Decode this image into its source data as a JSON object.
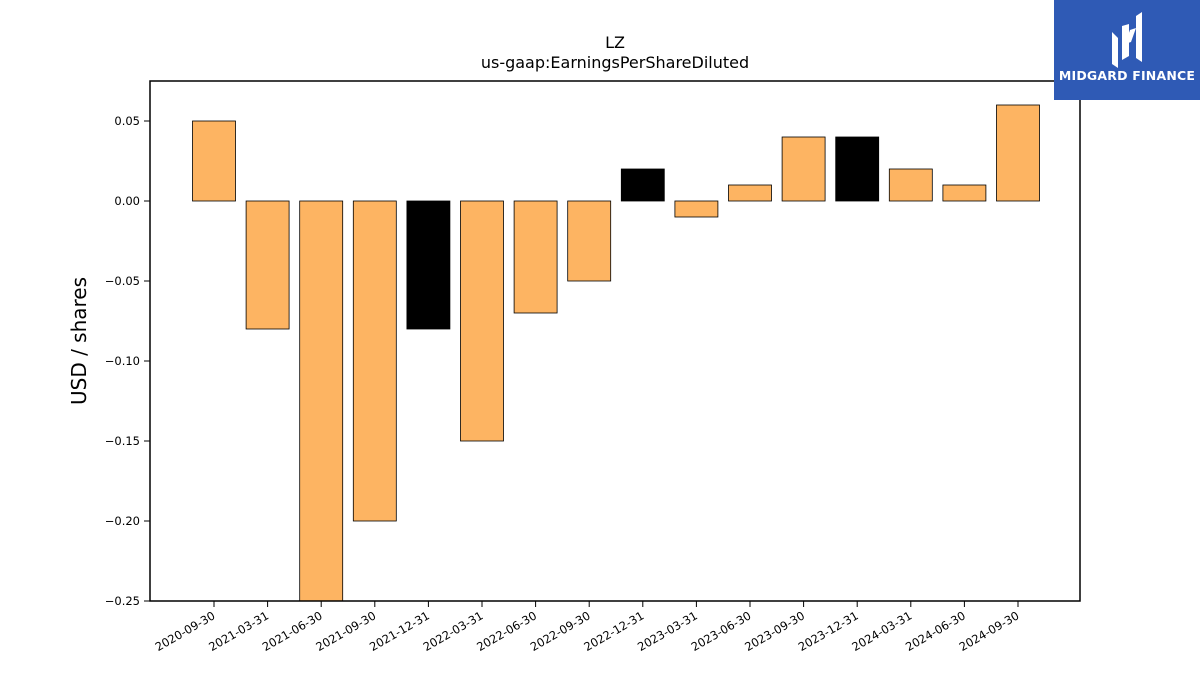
{
  "brand": {
    "name": "MIDGARD FINANCE",
    "logo_icon": "midgard-m-logo-icon",
    "background": "#2f5ab5",
    "text_color": "#ffffff"
  },
  "chart_data": {
    "type": "bar",
    "title": "LZ",
    "subtitle": "us-gaap:EarningsPerShareDiluted",
    "xlabel": "",
    "ylabel": "USD / shares",
    "ylim": [
      -0.25,
      0.075
    ],
    "yticks": [
      0.05,
      0.0,
      -0.05,
      -0.1,
      -0.15,
      -0.2,
      -0.25
    ],
    "ytick_labels": [
      "0.05",
      "0.00",
      "−0.05",
      "−0.10",
      "−0.15",
      "−0.20",
      "−0.25"
    ],
    "categories": [
      "2020-09-30",
      "2021-03-31",
      "2021-06-30",
      "2021-09-30",
      "2021-12-31",
      "2022-03-31",
      "2022-06-30",
      "2022-09-30",
      "2022-12-31",
      "2023-03-31",
      "2023-06-30",
      "2023-09-30",
      "2023-12-31",
      "2024-03-31",
      "2024-06-30",
      "2024-09-30"
    ],
    "values": [
      0.05,
      -0.08,
      -0.25,
      -0.2,
      -0.08,
      -0.15,
      -0.07,
      -0.05,
      0.02,
      -0.01,
      0.01,
      0.04,
      0.04,
      0.02,
      0.01,
      0.06
    ],
    "colors": [
      "#fdb462",
      "#fdb462",
      "#fdb462",
      "#fdb462",
      "#000000",
      "#fdb462",
      "#fdb462",
      "#fdb462",
      "#000000",
      "#fdb462",
      "#fdb462",
      "#fdb462",
      "#000000",
      "#fdb462",
      "#fdb462",
      "#fdb462"
    ],
    "bar_color": "#fdb462",
    "highlight_color": "#000000",
    "grid": false,
    "legend": "none"
  }
}
